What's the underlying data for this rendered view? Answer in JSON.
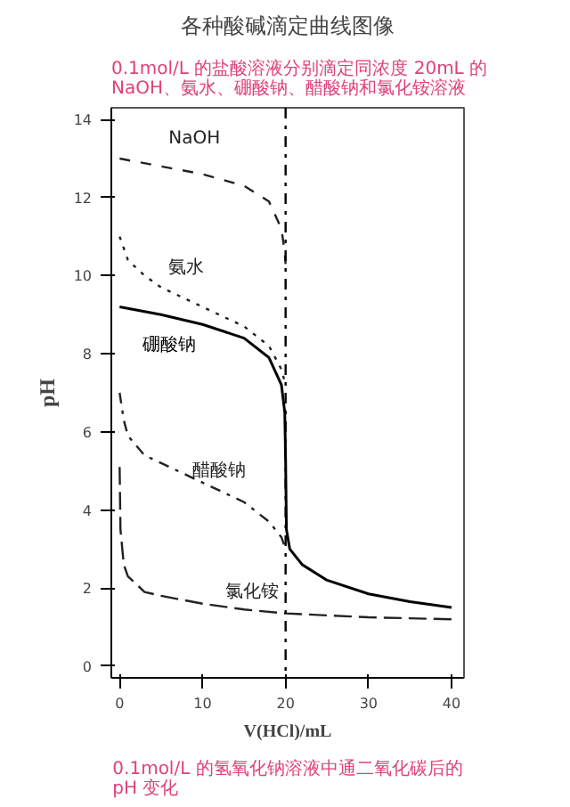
{
  "chart_data": {
    "type": "line",
    "title": "各种酸碱滴定曲线图像",
    "subtitle": "0.1mol/L 的盐酸溶液分别滴定同浓度 20mL 的 NaOH、氨水、硼酸钠、醋酸钠和氯化铵溶液",
    "xlabel": "V(HCl)/mL",
    "ylabel": "pH",
    "xlim": [
      -1,
      41.5
    ],
    "ylim": [
      -0.3,
      14.3
    ],
    "xticks": [
      0,
      10,
      20,
      30,
      40
    ],
    "yticks": [
      0,
      2,
      4,
      6,
      8,
      10,
      12,
      14
    ],
    "grid": false,
    "marker": "none",
    "ref_lines": [
      {
        "axis": "x",
        "value": 20,
        "color": "#000000",
        "line_style": "dashdot"
      }
    ],
    "annotations": [
      "0.1mol/L 的氢氧化钠溶液中通二氧化碳后的 pH 变化"
    ],
    "series": [
      {
        "name": "NaOH",
        "color": "#222222",
        "line_style": "dashed",
        "x": [
          0,
          5,
          10,
          15,
          18,
          19.5,
          19.9,
          20
        ],
        "values": [
          13.0,
          12.8,
          12.6,
          12.3,
          11.9,
          11.2,
          10.6,
          10.3
        ]
      },
      {
        "name": "氨水",
        "color": "#222222",
        "line_style": "dotted",
        "x": [
          0,
          1,
          3,
          5,
          10,
          15,
          18,
          19.5,
          20
        ],
        "values": [
          11.0,
          10.4,
          10.0,
          9.7,
          9.2,
          8.7,
          8.2,
          7.6,
          7.2
        ]
      },
      {
        "name": "硼酸钠",
        "color": "#000000",
        "line_style": "solid",
        "x": [
          0,
          5,
          10,
          15,
          18,
          19.5,
          19.9,
          20,
          20.1,
          20.5,
          22,
          25,
          30,
          35,
          40
        ],
        "values": [
          9.2,
          9.0,
          8.75,
          8.4,
          7.9,
          7.2,
          6.5,
          5.3,
          3.5,
          3.0,
          2.6,
          2.2,
          1.85,
          1.65,
          1.5
        ]
      },
      {
        "name": "醋酸钠",
        "color": "#222222",
        "line_style": "dashdot",
        "x": [
          0,
          0.5,
          1,
          3,
          5,
          10,
          15,
          18,
          19.5,
          20
        ],
        "values": [
          7.0,
          6.3,
          5.9,
          5.4,
          5.2,
          4.7,
          4.2,
          3.7,
          3.3,
          3.0
        ]
      },
      {
        "name": "氯化铵",
        "color": "#222222",
        "line_style": "longdash",
        "x": [
          0,
          0.1,
          0.5,
          1,
          3,
          5,
          10,
          15,
          20,
          25,
          30,
          40
        ],
        "values": [
          5.1,
          3.5,
          2.6,
          2.3,
          1.9,
          1.8,
          1.6,
          1.45,
          1.35,
          1.3,
          1.25,
          1.2
        ]
      }
    ]
  }
}
